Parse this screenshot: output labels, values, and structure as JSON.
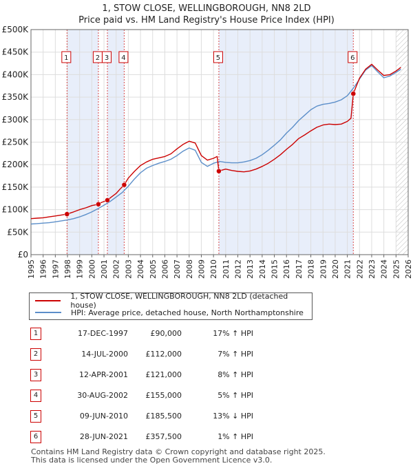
{
  "chart_data": {
    "type": "line",
    "title": "1, STOW CLOSE, WELLINGBOROUGH, NN8 2LD",
    "subtitle": "Price paid vs. HM Land Registry's House Price Index (HPI)",
    "xlabel": "",
    "ylabel": "",
    "xlim": [
      1995,
      2026
    ],
    "ylim": [
      0,
      500000
    ],
    "x_ticks": [
      "1995",
      "1996",
      "1997",
      "1998",
      "1999",
      "2000",
      "2001",
      "2002",
      "2003",
      "2004",
      "2005",
      "2006",
      "2007",
      "2008",
      "2009",
      "2010",
      "2011",
      "2012",
      "2013",
      "2014",
      "2015",
      "2016",
      "2017",
      "2018",
      "2019",
      "2020",
      "2021",
      "2022",
      "2023",
      "2024",
      "2025",
      "2026"
    ],
    "y_ticks": [
      {
        "value": 0,
        "label": "£0"
      },
      {
        "value": 50000,
        "label": "£50K"
      },
      {
        "value": 100000,
        "label": "£100K"
      },
      {
        "value": 150000,
        "label": "£150K"
      },
      {
        "value": 200000,
        "label": "£200K"
      },
      {
        "value": 250000,
        "label": "£250K"
      },
      {
        "value": 300000,
        "label": "£300K"
      },
      {
        "value": 350000,
        "label": "£350K"
      },
      {
        "value": 400000,
        "label": "£400K"
      },
      {
        "value": 450000,
        "label": "£450K"
      },
      {
        "value": 500000,
        "label": "£500K"
      }
    ],
    "series": [
      {
        "name": "1, STOW CLOSE, WELLINGBOROUGH, NN8 2LD (detached house)",
        "color": "#cc0000",
        "x": [
          1995.0,
          1995.5,
          1996.0,
          1996.5,
          1997.0,
          1997.5,
          1997.96,
          1998.5,
          1999.0,
          1999.5,
          2000.0,
          2000.54,
          2000.8,
          2001.28,
          2001.6,
          2002.0,
          2002.3,
          2002.66,
          2003.0,
          2003.5,
          2004.0,
          2004.5,
          2005.0,
          2005.5,
          2006.0,
          2006.5,
          2007.0,
          2007.5,
          2008.0,
          2008.5,
          2009.0,
          2009.5,
          2010.0,
          2010.3,
          2010.44,
          2010.6,
          2011.0,
          2011.5,
          2012.0,
          2012.5,
          2013.0,
          2013.5,
          2014.0,
          2014.5,
          2015.0,
          2015.5,
          2016.0,
          2016.5,
          2017.0,
          2017.5,
          2018.0,
          2018.5,
          2019.0,
          2019.5,
          2020.0,
          2020.5,
          2021.0,
          2021.3,
          2021.49,
          2021.7,
          2022.0,
          2022.5,
          2023.0,
          2023.5,
          2024.0,
          2024.5,
          2025.0,
          2025.4
        ],
        "y": [
          80000,
          81000,
          82000,
          84000,
          86000,
          88000,
          90000,
          95000,
          100000,
          104000,
          109000,
          112000,
          116000,
          121000,
          128000,
          136000,
          145000,
          155000,
          170000,
          185000,
          198000,
          206000,
          212000,
          215000,
          218000,
          224000,
          235000,
          245000,
          252000,
          248000,
          220000,
          210000,
          214000,
          218000,
          185500,
          187000,
          190000,
          187000,
          185000,
          184000,
          186000,
          190000,
          196000,
          203000,
          212000,
          222000,
          234000,
          245000,
          258000,
          266000,
          275000,
          283000,
          288000,
          290000,
          289000,
          290000,
          296000,
          303000,
          357500,
          372000,
          392000,
          412000,
          423000,
          410000,
          398000,
          400000,
          408000,
          416000
        ]
      },
      {
        "name": "HPI: Average price, detached house, North Northamptonshire",
        "color": "#5b8ec9",
        "x": [
          1995.0,
          1995.5,
          1996.0,
          1996.5,
          1997.0,
          1997.5,
          1998.0,
          1998.5,
          1999.0,
          1999.5,
          2000.0,
          2000.5,
          2001.0,
          2001.5,
          2002.0,
          2002.5,
          2003.0,
          2003.5,
          2004.0,
          2004.5,
          2005.0,
          2005.5,
          2006.0,
          2006.5,
          2007.0,
          2007.5,
          2008.0,
          2008.5,
          2009.0,
          2009.5,
          2010.0,
          2010.5,
          2011.0,
          2011.5,
          2012.0,
          2012.5,
          2013.0,
          2013.5,
          2014.0,
          2014.5,
          2015.0,
          2015.5,
          2016.0,
          2016.5,
          2017.0,
          2017.5,
          2018.0,
          2018.5,
          2019.0,
          2019.5,
          2020.0,
          2020.5,
          2021.0,
          2021.5,
          2022.0,
          2022.5,
          2023.0,
          2023.5,
          2024.0,
          2024.5,
          2025.0,
          2025.4
        ],
        "y": [
          68000,
          69000,
          70000,
          71000,
          73000,
          75000,
          77000,
          80000,
          84000,
          89000,
          95000,
          102000,
          110000,
          118000,
          128000,
          138000,
          152000,
          168000,
          182000,
          192000,
          198000,
          203000,
          207000,
          212000,
          220000,
          230000,
          237000,
          232000,
          205000,
          196000,
          203000,
          207000,
          205000,
          204000,
          204000,
          206000,
          209000,
          214000,
          222000,
          232000,
          243000,
          255000,
          270000,
          283000,
          298000,
          310000,
          322000,
          330000,
          334000,
          336000,
          339000,
          344000,
          353000,
          370000,
          390000,
          410000,
          420000,
          406000,
          393000,
          397000,
          405000,
          412000
        ]
      }
    ],
    "sales": [
      {
        "num": "1",
        "x": 1997.96,
        "y": 90000,
        "date": "17-DEC-1997",
        "price": "£90,000",
        "hpi": "17% ↑ HPI"
      },
      {
        "num": "2",
        "x": 2000.54,
        "y": 112000,
        "date": "14-JUL-2000",
        "price": "£112,000",
        "hpi": "7% ↑ HPI"
      },
      {
        "num": "3",
        "x": 2001.28,
        "y": 121000,
        "date": "12-APR-2001",
        "price": "£121,000",
        "hpi": "8% ↑ HPI"
      },
      {
        "num": "4",
        "x": 2002.66,
        "y": 155000,
        "date": "30-AUG-2002",
        "price": "£155,000",
        "hpi": "5% ↑ HPI"
      },
      {
        "num": "5",
        "x": 2010.44,
        "y": 185500,
        "date": "09-JUN-2010",
        "price": "£185,500",
        "hpi": "13% ↓ HPI"
      },
      {
        "num": "6",
        "x": 2021.49,
        "y": 357500,
        "date": "28-JUN-2021",
        "price": "£357,500",
        "hpi": "1% ↑ HPI"
      }
    ],
    "shaded_ranges": [
      [
        1997.96,
        2000.54
      ],
      [
        2001.28,
        2002.66
      ],
      [
        2010.44,
        2021.49
      ]
    ],
    "hatched_from": 2025.0,
    "colors": {
      "price": "#cc0000",
      "hpi": "#5b8ec9",
      "shade": "#e8eefa",
      "grid": "#dddddd"
    }
  },
  "footer": {
    "line1": "Contains HM Land Registry data © Crown copyright and database right 2025.",
    "line2": "This data is licensed under the Open Government Licence v3.0."
  }
}
